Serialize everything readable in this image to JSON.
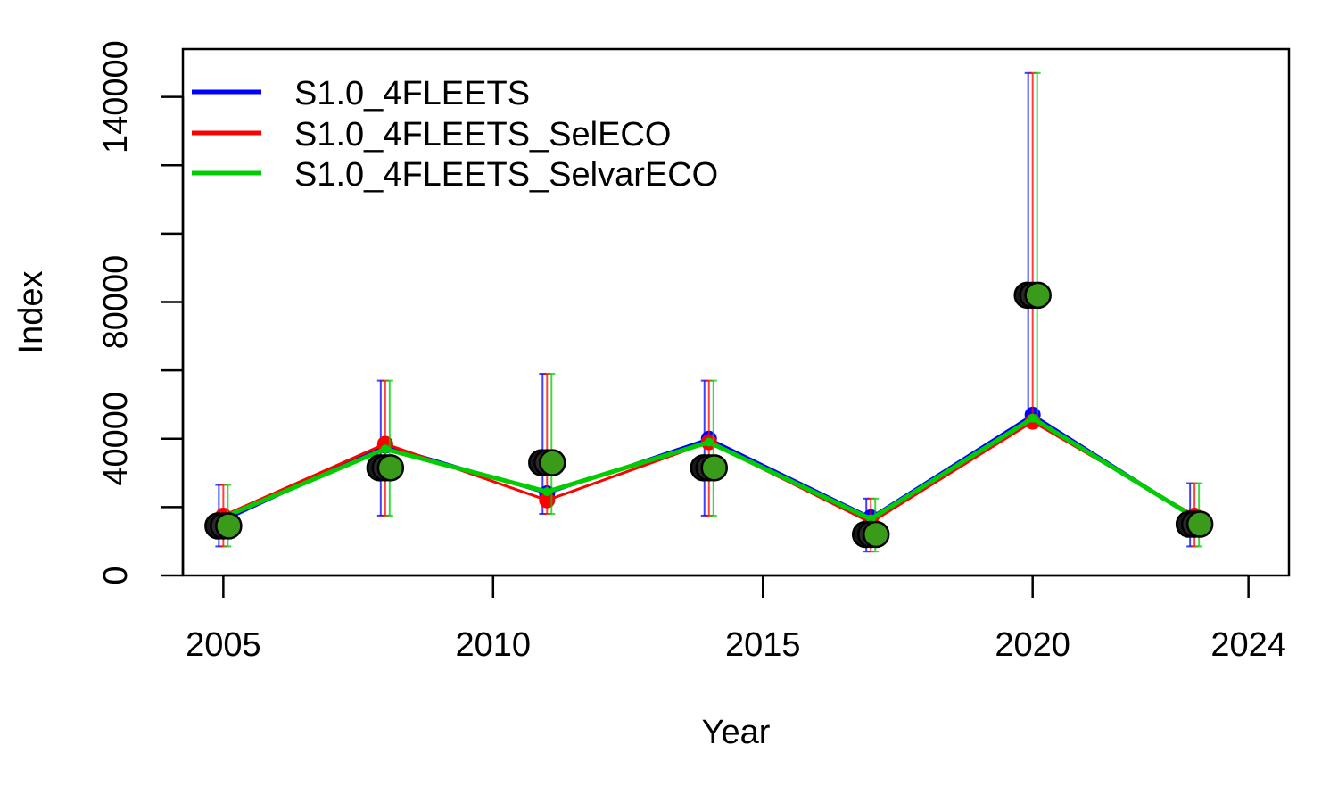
{
  "chart_data": {
    "type": "line",
    "title": "",
    "xlabel": "Year",
    "ylabel": "Index",
    "xlim": [
      2004.25,
      2024.75
    ],
    "ylim": [
      0,
      154000
    ],
    "x_ticks": [
      2005,
      2010,
      2015,
      2020,
      2024
    ],
    "x_tick_labels": [
      "2005",
      "2010",
      "2015",
      "2020",
      "2024"
    ],
    "y_ticks": [
      0,
      20000,
      40000,
      60000,
      80000,
      100000,
      120000,
      140000
    ],
    "y_tick_labels": [
      "0",
      "",
      "40000",
      "",
      "80000",
      "",
      "",
      "140000"
    ],
    "grid": false,
    "legend_position": "top-left",
    "years": [
      2005,
      2008,
      2011,
      2014,
      2017,
      2020,
      2023
    ],
    "observed": [
      14500,
      31500,
      33000,
      31500,
      12000,
      82000,
      15000
    ],
    "series": [
      {
        "name": "S1.0_4FLEETS",
        "color": "#0000ff",
        "values": [
          16000,
          38000,
          24000,
          40000,
          17000,
          47000,
          17000
        ],
        "ci_lower": [
          8500,
          17500,
          18000,
          17500,
          7000,
          46000,
          8500
        ],
        "ci_upper": [
          26500,
          57000,
          59000,
          57000,
          22500,
          147000,
          27000
        ]
      },
      {
        "name": "S1.0_4FLEETS_SelECO",
        "color": "#ff0000",
        "values": [
          17500,
          38500,
          22000,
          39000,
          15500,
          45000,
          17500
        ],
        "ci_lower": [
          8500,
          17500,
          18000,
          17500,
          7000,
          46000,
          8500
        ],
        "ci_upper": [
          26500,
          57000,
          59000,
          57000,
          22500,
          147000,
          27000
        ]
      },
      {
        "name": "S1.0_4FLEETS_SelvarECO",
        "color": "#00cd00",
        "values": [
          17000,
          37000,
          24500,
          39000,
          16500,
          46000,
          17000
        ],
        "ci_lower": [
          8500,
          17500,
          18000,
          17500,
          7000,
          46000,
          8500
        ],
        "ci_upper": [
          26500,
          57000,
          59000,
          57000,
          22500,
          147000,
          27000
        ]
      }
    ]
  }
}
